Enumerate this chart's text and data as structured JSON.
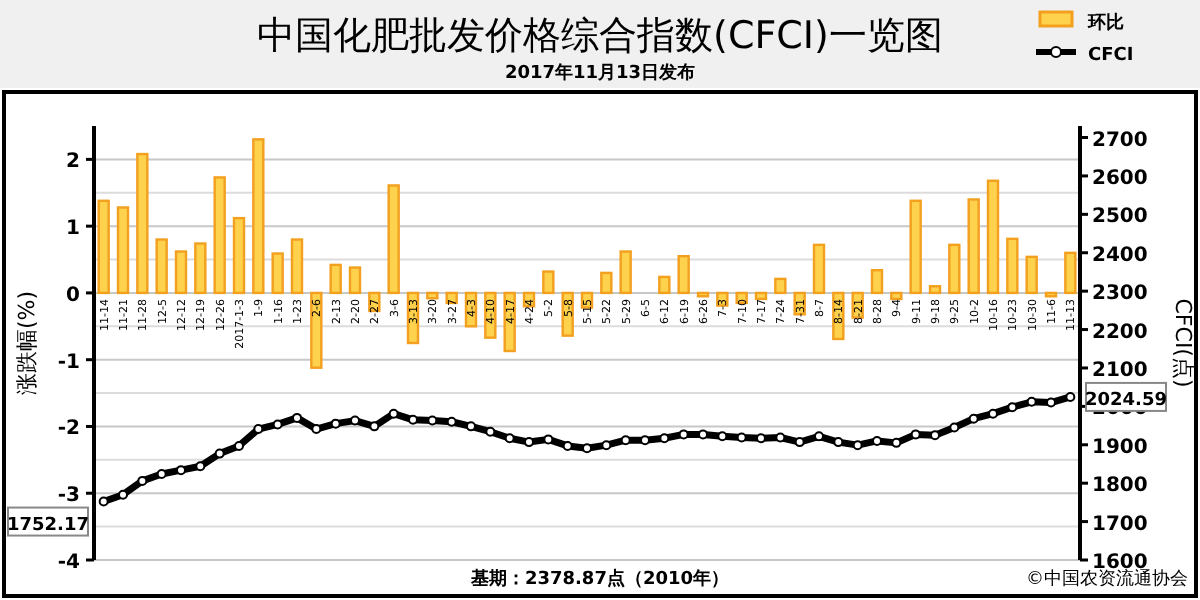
{
  "chart_data": {
    "type": "bar",
    "title": "中国化肥批发价格综合指数(CFCI)一览图",
    "subtitle": "2017年11月13日发布",
    "ylabel": "涨跌幅(%)",
    "y2label": "CFCI(点)",
    "categories": [
      "11-14",
      "11-21",
      "11-28",
      "12-5",
      "12-12",
      "12-19",
      "12-26",
      "2017-1-3",
      "1-9",
      "1-16",
      "1-23",
      "2-6",
      "2-13",
      "2-20",
      "2-27",
      "3-6",
      "3-13",
      "3-20",
      "3-27",
      "4-3",
      "4-10",
      "4-17",
      "4-24",
      "5-2",
      "5-8",
      "5-15",
      "5-22",
      "5-29",
      "6-5",
      "6-12",
      "6-19",
      "6-26",
      "7-3",
      "7-10",
      "7-17",
      "7-24",
      "7-31",
      "8-7",
      "8-14",
      "8-21",
      "8-28",
      "9-4",
      "9-11",
      "9-18",
      "9-25",
      "10-2",
      "10-16",
      "10-23",
      "10-30",
      "11-6",
      "11-13"
    ],
    "series": [
      {
        "name": "环比",
        "color": "#f2a01e",
        "values": [
          1.38,
          1.28,
          2.08,
          0.8,
          0.62,
          0.74,
          1.73,
          1.12,
          2.3,
          0.59,
          0.8,
          -1.12,
          0.42,
          0.38,
          -0.27,
          1.61,
          -0.75,
          -0.08,
          -0.15,
          -0.5,
          -0.67,
          -0.87,
          -0.2,
          0.32,
          -0.64,
          -0.22,
          0.3,
          0.62,
          0.0,
          0.24,
          0.55,
          -0.05,
          -0.19,
          -0.15,
          -0.09,
          0.21,
          -0.32,
          0.72,
          -0.69,
          -0.37,
          0.34,
          -0.09,
          1.38,
          0.1,
          0.72,
          1.4,
          1.68,
          0.81,
          0.54,
          -0.05,
          0.6
        ]
      },
      {
        "name": "CFCI",
        "type": "line",
        "axis": "y2",
        "color": "#000000",
        "marker": "circle",
        "values": [
          1752.17,
          1770,
          1806,
          1824,
          1834,
          1844,
          1877,
          1897,
          1941,
          1953,
          1970,
          1941,
          1955,
          1963,
          1948,
          1981,
          1965,
          1963,
          1960,
          1948,
          1934,
          1917,
          1907,
          1914,
          1897,
          1891,
          1899,
          1912,
          1912,
          1917,
          1927,
          1927,
          1922,
          1919,
          1917,
          1919,
          1907,
          1922,
          1907,
          1899,
          1910,
          1905,
          1927,
          1925,
          1945,
          1968,
          1981,
          1998,
          2012,
          2010,
          2024.59
        ],
        "value_labels": [
          "1752.17",
          null,
          null,
          null,
          null,
          null,
          null,
          null,
          null,
          null,
          null,
          null,
          null,
          null,
          null,
          null,
          null,
          null,
          null,
          null,
          null,
          null,
          null,
          null,
          null,
          null,
          null,
          null,
          null,
          null,
          null,
          null,
          null,
          null,
          null,
          null,
          null,
          null,
          null,
          null,
          null,
          null,
          null,
          null,
          null,
          null,
          null,
          null,
          null,
          null,
          "2024.59"
        ]
      }
    ],
    "ylim": [
      -4,
      2.5
    ],
    "yticks": [
      -4,
      -3,
      -2,
      -1,
      0,
      1,
      2
    ],
    "y2lim": [
      1600,
      2730
    ],
    "y2ticks": [
      1600,
      1700,
      1800,
      1900,
      2000,
      2100,
      2200,
      2300,
      2400,
      2500,
      2600,
      2700
    ],
    "grid": "y",
    "legend": "top right",
    "annotations": [
      "基期：2378.87点（2010年）",
      "©中国农资流通协会"
    ]
  }
}
